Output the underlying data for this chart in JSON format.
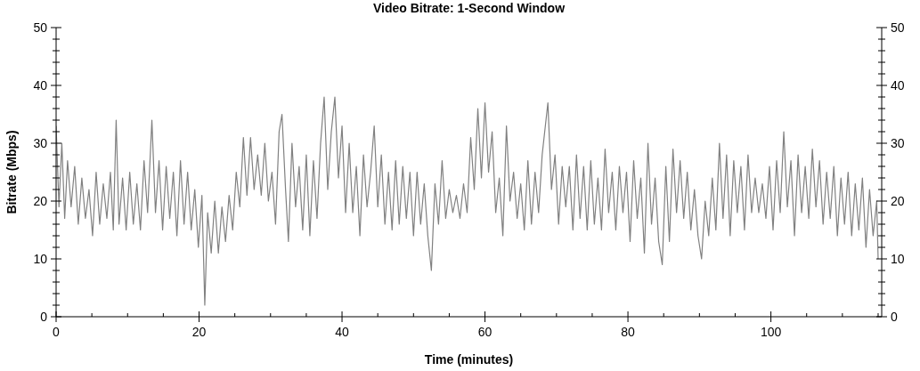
{
  "chart_data": {
    "type": "line",
    "title": "Video Bitrate: 1-Second Window",
    "xlabel": "Time (minutes)",
    "ylabel": "Bitrate (Mbps)",
    "xlim": [
      0,
      115.5
    ],
    "ylim": [
      0,
      50
    ],
    "y2lim": [
      0,
      50
    ],
    "xticks": [
      0,
      {
        "value": 5,
        "label": null
      },
      {
        "value": 10,
        "label": null
      },
      {
        "value": 15,
        "label": null
      },
      20,
      {
        "value": 25,
        "label": null
      },
      {
        "value": 30,
        "label": null
      },
      {
        "value": 35,
        "label": null
      },
      40,
      {
        "value": 45,
        "label": null
      },
      {
        "value": 50,
        "label": null
      },
      {
        "value": 55,
        "label": null
      },
      60,
      {
        "value": 65,
        "label": null
      },
      {
        "value": 70,
        "label": null
      },
      {
        "value": 75,
        "label": null
      },
      80,
      {
        "value": 85,
        "label": null
      },
      {
        "value": 90,
        "label": null
      },
      {
        "value": 95,
        "label": null
      },
      100,
      {
        "value": 105,
        "label": null
      },
      {
        "value": 110,
        "label": null
      },
      {
        "value": 115,
        "label": null
      }
    ],
    "yticks": [
      0,
      {
        "value": 2,
        "label": null
      },
      {
        "value": 4,
        "label": null
      },
      {
        "value": 6,
        "label": null
      },
      {
        "value": 8,
        "label": null
      },
      10,
      {
        "value": 12,
        "label": null
      },
      {
        "value": 14,
        "label": null
      },
      {
        "value": 16,
        "label": null
      },
      {
        "value": 18,
        "label": null
      },
      20,
      {
        "value": 22,
        "label": null
      },
      {
        "value": 24,
        "label": null
      },
      {
        "value": 26,
        "label": null
      },
      {
        "value": 28,
        "label": null
      },
      30,
      {
        "value": 32,
        "label": null
      },
      {
        "value": 34,
        "label": null
      },
      {
        "value": 36,
        "label": null
      },
      {
        "value": 38,
        "label": null
      },
      40,
      {
        "value": 42,
        "label": null
      },
      {
        "value": 44,
        "label": null
      },
      {
        "value": 46,
        "label": null
      },
      {
        "value": 48,
        "label": null
      },
      50
    ],
    "y2ticks": [
      0,
      {
        "value": 2,
        "label": null
      },
      {
        "value": 4,
        "label": null
      },
      {
        "value": 6,
        "label": null
      },
      {
        "value": 8,
        "label": null
      },
      10,
      {
        "value": 12,
        "label": null
      },
      {
        "value": 14,
        "label": null
      },
      {
        "value": 16,
        "label": null
      },
      {
        "value": 18,
        "label": null
      },
      20,
      {
        "value": 22,
        "label": null
      },
      {
        "value": 24,
        "label": null
      },
      {
        "value": 26,
        "label": null
      },
      {
        "value": 28,
        "label": null
      },
      30,
      {
        "value": 32,
        "label": null
      },
      {
        "value": 34,
        "label": null
      },
      {
        "value": 36,
        "label": null
      },
      {
        "value": 38,
        "label": null
      },
      40,
      {
        "value": 42,
        "label": null
      },
      {
        "value": 44,
        "label": null
      },
      {
        "value": 46,
        "label": null
      },
      {
        "value": 48,
        "label": null
      },
      50
    ],
    "grid": false,
    "series": [
      {
        "color": "#808080",
        "x": [
          0,
          0.4,
          0.8,
          1.2,
          1.6,
          2.1,
          2.6,
          3.1,
          3.6,
          4.1,
          4.6,
          5.1,
          5.6,
          6.1,
          6.6,
          7.1,
          7.6,
          8.0,
          8.4,
          8.8,
          9.3,
          9.8,
          10.3,
          10.8,
          11.3,
          11.8,
          12.3,
          12.8,
          13.4,
          13.9,
          14.4,
          14.9,
          15.4,
          15.9,
          16.4,
          16.9,
          17.4,
          17.9,
          18.4,
          18.9,
          19.4,
          19.9,
          20.4,
          20.8,
          21.2,
          21.7,
          22.2,
          22.7,
          23.2,
          23.7,
          24.2,
          24.7,
          25.2,
          25.7,
          26.2,
          26.7,
          27.2,
          27.7,
          28.2,
          28.7,
          29.2,
          29.7,
          30.2,
          30.7,
          31.2,
          31.6,
          32.1,
          32.5,
          33.0,
          33.5,
          34.0,
          34.5,
          35.0,
          35.5,
          36.0,
          36.5,
          37.0,
          37.5,
          38.0,
          38.5,
          39.0,
          39.5,
          40.0,
          40.5,
          41.0,
          41.5,
          42.0,
          42.5,
          43.0,
          43.5,
          44.0,
          44.5,
          45.0,
          45.5,
          46.0,
          46.5,
          47.0,
          47.5,
          48.0,
          48.5,
          49.0,
          49.5,
          50.0,
          50.5,
          51.0,
          51.5,
          52.0,
          52.5,
          53.0,
          53.5,
          54.0,
          54.5,
          55.0,
          55.5,
          56.0,
          56.5,
          57.0,
          57.5,
          58.0,
          58.5,
          59.0,
          59.5,
          60.0,
          60.5,
          61.0,
          61.5,
          62.0,
          62.5,
          63.0,
          63.5,
          64.0,
          64.5,
          65.0,
          65.5,
          66.0,
          66.5,
          67.0,
          67.5,
          68.0,
          68.8,
          69.3,
          69.8,
          70.3,
          70.8,
          71.3,
          71.8,
          72.3,
          72.8,
          73.3,
          73.8,
          74.3,
          74.8,
          75.3,
          75.8,
          76.3,
          76.8,
          77.3,
          77.8,
          78.3,
          78.8,
          79.3,
          79.8,
          80.3,
          80.8,
          81.3,
          81.8,
          82.3,
          82.8,
          83.3,
          83.8,
          84.3,
          84.8,
          85.3,
          85.8,
          86.3,
          86.8,
          87.3,
          87.8,
          88.3,
          88.8,
          89.3,
          89.8,
          90.3,
          90.8,
          91.3,
          91.8,
          92.3,
          92.8,
          93.3,
          93.8,
          94.3,
          94.8,
          95.3,
          95.8,
          96.3,
          96.8,
          97.3,
          97.8,
          98.3,
          98.8,
          99.3,
          99.8,
          100.3,
          100.8,
          101.3,
          101.8,
          102.3,
          102.8,
          103.3,
          103.8,
          104.3,
          104.8,
          105.3,
          105.8,
          106.3,
          106.8,
          107.3,
          107.8,
          108.3,
          108.8,
          109.3,
          109.8,
          110.3,
          110.8,
          111.3,
          111.8,
          112.3,
          112.8,
          113.3,
          113.8,
          114.3,
          114.8,
          115.0
        ],
        "values": [
          33,
          19,
          30,
          17,
          27,
          19,
          26,
          16,
          24,
          17,
          22,
          14,
          25,
          16,
          23,
          17,
          25,
          15,
          34,
          16,
          24,
          15,
          25,
          16,
          23,
          15,
          27,
          18,
          34,
          18,
          27,
          15,
          26,
          17,
          25,
          14,
          27,
          16,
          25,
          15,
          22,
          12,
          21,
          2,
          18,
          11,
          20,
          11,
          19,
          13,
          21,
          15,
          25,
          19,
          31,
          21,
          31,
          22,
          28,
          21,
          30,
          20,
          25,
          16,
          32,
          35,
          22,
          13,
          30,
          19,
          26,
          15,
          28,
          14,
          27,
          17,
          30,
          38,
          22,
          32,
          38,
          24,
          33,
          18,
          30,
          18,
          26,
          14,
          28,
          19,
          25,
          33,
          19,
          28,
          16,
          25,
          15,
          27,
          16,
          26,
          17,
          25,
          14,
          25,
          16,
          23,
          14,
          8,
          23,
          16,
          27,
          17,
          22,
          18,
          21,
          17,
          23,
          18,
          31,
          22,
          36,
          24,
          37,
          25,
          32,
          18,
          24,
          14,
          33,
          20,
          25,
          17,
          23,
          15,
          27,
          16,
          25,
          18,
          28,
          37,
          22,
          28,
          16,
          26,
          19,
          26,
          15,
          28,
          17,
          26,
          15,
          27,
          16,
          24,
          15,
          29,
          18,
          25,
          15,
          26,
          18,
          25,
          13,
          27,
          17,
          24,
          11,
          30,
          16,
          24,
          13,
          9,
          26,
          13,
          29,
          18,
          27,
          17,
          25,
          15,
          22,
          14,
          10,
          20,
          14,
          24,
          15,
          30,
          17,
          28,
          14,
          27,
          18,
          26,
          15,
          28,
          18,
          24,
          18,
          23,
          17,
          26,
          15,
          27,
          18,
          32,
          19,
          27,
          14,
          28,
          18,
          26,
          17,
          29,
          19,
          27,
          16,
          25,
          17,
          26,
          14,
          24,
          16,
          25,
          14,
          23,
          15,
          24,
          12,
          22,
          14,
          20,
          10
        ]
      }
    ]
  }
}
